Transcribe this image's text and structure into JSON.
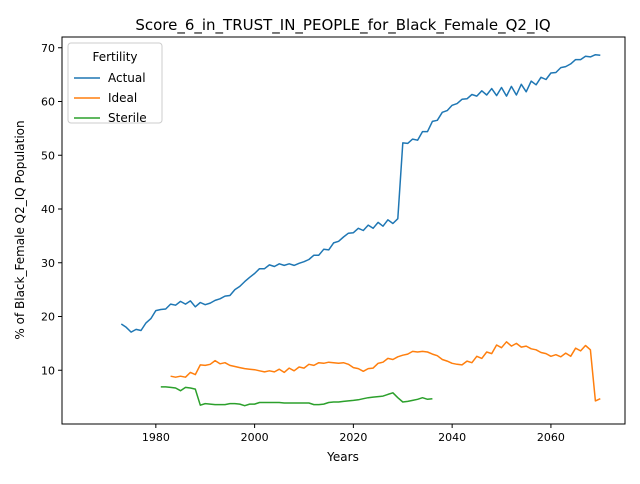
{
  "chart_data": {
    "type": "line",
    "title": "Score_6_in_TRUST_IN_PEOPLE_for_Black_Female_Q2_IQ",
    "xlabel": "Years",
    "ylabel": "% of Black_Female Q2_IQ Population",
    "xlim": [
      1961,
      2075
    ],
    "ylim": [
      0,
      72
    ],
    "x_ticks": [
      1980,
      2000,
      2020,
      2040,
      2060
    ],
    "y_ticks": [
      10,
      20,
      30,
      40,
      50,
      60,
      70
    ],
    "grid": false,
    "legend": {
      "title": "Fertility",
      "position": "top-left"
    },
    "series": [
      {
        "name": "Actual",
        "color": "#1f77b4",
        "x": [
          1973,
          1974,
          1975,
          1976,
          1977,
          1978,
          1979,
          1980,
          1981,
          1982,
          1983,
          1984,
          1985,
          1986,
          1987,
          1988,
          1989,
          1990,
          1991,
          1992,
          1993,
          1994,
          1995,
          1996,
          1997,
          1998,
          1999,
          2000,
          2001,
          2002,
          2003,
          2004,
          2005,
          2006,
          2007,
          2008,
          2009,
          2010,
          2011,
          2012,
          2013,
          2014,
          2015,
          2016,
          2017,
          2018,
          2019,
          2020,
          2021,
          2022,
          2023,
          2024,
          2025,
          2026,
          2027,
          2028,
          2029,
          2030,
          2031,
          2032,
          2033,
          2034,
          2035,
          2036,
          2037,
          2038,
          2039,
          2040,
          2041,
          2042,
          2043,
          2044,
          2045,
          2046,
          2047,
          2048,
          2049,
          2050,
          2051,
          2052,
          2053,
          2054,
          2055,
          2056,
          2057,
          2058,
          2059,
          2060,
          2061,
          2062,
          2063,
          2064,
          2065,
          2066,
          2067,
          2068,
          2069,
          2070
        ],
        "y": [
          18.6,
          18.0,
          17.1,
          17.6,
          17.4,
          18.8,
          19.6,
          21.1,
          21.3,
          21.4,
          22.3,
          22.1,
          22.8,
          22.3,
          22.9,
          21.8,
          22.6,
          22.2,
          22.5,
          23.0,
          23.3,
          23.8,
          23.9,
          25.0,
          25.6,
          26.5,
          27.3,
          28.0,
          28.9,
          28.9,
          29.6,
          29.3,
          29.8,
          29.5,
          29.8,
          29.5,
          29.9,
          30.2,
          30.6,
          31.4,
          31.4,
          32.5,
          32.4,
          33.7,
          34.0,
          34.8,
          35.5,
          35.6,
          36.4,
          36.0,
          37.0,
          36.4,
          37.5,
          36.8,
          38.0,
          37.3,
          38.2,
          52.3,
          52.2,
          53.0,
          52.8,
          54.4,
          54.4,
          56.3,
          56.5,
          58.0,
          58.3,
          59.3,
          59.6,
          60.4,
          60.5,
          61.3,
          61.0,
          62.0,
          61.2,
          62.4,
          61.1,
          62.6,
          61.0,
          62.8,
          61.2,
          63.2,
          61.8,
          63.8,
          63.1,
          64.5,
          64.1,
          65.3,
          65.4,
          66.3,
          66.5,
          67.0,
          67.8,
          67.8,
          68.4,
          68.3,
          68.7,
          68.6
        ]
      },
      {
        "name": "Ideal",
        "color": "#ff7f0e",
        "x": [
          1983,
          1984,
          1985,
          1986,
          1987,
          1988,
          1989,
          1990,
          1991,
          1992,
          1993,
          1994,
          1995,
          1996,
          1997,
          1998,
          1999,
          2000,
          2001,
          2002,
          2003,
          2004,
          2005,
          2006,
          2007,
          2008,
          2009,
          2010,
          2011,
          2012,
          2013,
          2014,
          2015,
          2016,
          2017,
          2018,
          2019,
          2020,
          2021,
          2022,
          2023,
          2024,
          2025,
          2026,
          2027,
          2028,
          2029,
          2030,
          2031,
          2032,
          2033,
          2034,
          2035,
          2036,
          2037,
          2038,
          2039,
          2040,
          2041,
          2042,
          2043,
          2044,
          2045,
          2046,
          2047,
          2048,
          2049,
          2050,
          2051,
          2052,
          2053,
          2054,
          2055,
          2056,
          2057,
          2058,
          2059,
          2060,
          2061,
          2062,
          2063,
          2064,
          2065,
          2066,
          2067,
          2068,
          2069,
          2070
        ],
        "y": [
          8.9,
          8.7,
          8.9,
          8.7,
          9.6,
          9.2,
          11.0,
          10.9,
          11.1,
          11.8,
          11.2,
          11.4,
          10.9,
          10.7,
          10.5,
          10.3,
          10.2,
          10.1,
          9.9,
          9.7,
          9.9,
          9.7,
          10.2,
          9.6,
          10.4,
          9.9,
          10.6,
          10.4,
          11.1,
          10.9,
          11.4,
          11.3,
          11.5,
          11.4,
          11.3,
          11.4,
          11.1,
          10.5,
          10.3,
          9.8,
          10.3,
          10.4,
          11.3,
          11.5,
          12.2,
          12.0,
          12.5,
          12.8,
          13.0,
          13.5,
          13.4,
          13.5,
          13.4,
          13.0,
          12.7,
          12.0,
          11.7,
          11.3,
          11.1,
          11.0,
          11.7,
          11.4,
          12.6,
          12.2,
          13.4,
          13.1,
          14.7,
          14.2,
          15.3,
          14.5,
          15.0,
          14.3,
          14.5,
          14.0,
          13.8,
          13.3,
          13.1,
          12.6,
          12.9,
          12.5,
          13.2,
          12.6,
          14.1,
          13.6,
          14.6,
          13.8,
          4.3,
          4.7
        ]
      },
      {
        "name": "Sterile",
        "color": "#2ca02c",
        "x": [
          1981,
          1982,
          1983,
          1984,
          1985,
          1986,
          1987,
          1988,
          1989,
          1990,
          1991,
          1992,
          1993,
          1994,
          1995,
          1996,
          1997,
          1998,
          1999,
          2000,
          2001,
          2002,
          2003,
          2004,
          2005,
          2006,
          2007,
          2008,
          2009,
          2010,
          2011,
          2012,
          2013,
          2014,
          2015,
          2016,
          2017,
          2018,
          2019,
          2020,
          2021,
          2022,
          2023,
          2024,
          2025,
          2026,
          2027,
          2028,
          2029,
          2030,
          2031,
          2032,
          2033,
          2034,
          2035,
          2036
        ],
        "y": [
          6.9,
          6.9,
          6.8,
          6.7,
          6.2,
          6.8,
          6.7,
          6.5,
          3.5,
          3.8,
          3.7,
          3.6,
          3.6,
          3.6,
          3.8,
          3.8,
          3.7,
          3.4,
          3.7,
          3.7,
          4.0,
          4.0,
          4.0,
          4.0,
          4.0,
          3.9,
          3.9,
          3.9,
          3.9,
          3.9,
          3.9,
          3.6,
          3.6,
          3.7,
          4.0,
          4.1,
          4.1,
          4.2,
          4.3,
          4.4,
          4.5,
          4.7,
          4.9,
          5.0,
          5.1,
          5.2,
          5.5,
          5.8,
          4.9,
          4.1,
          4.2,
          4.4,
          4.6,
          4.9,
          4.6,
          4.7
        ]
      }
    ]
  }
}
